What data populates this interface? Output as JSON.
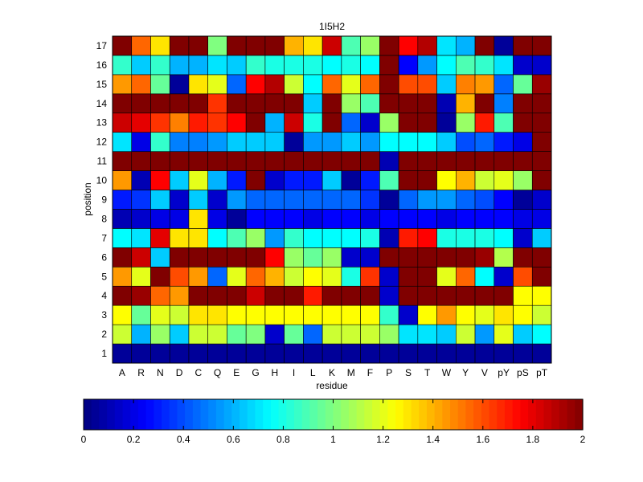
{
  "chart_data": {
    "type": "heatmap",
    "title": "1I5H2",
    "xlabel": "residue",
    "ylabel": "position",
    "x_categories": [
      "A",
      "R",
      "N",
      "D",
      "C",
      "Q",
      "E",
      "G",
      "H",
      "I",
      "L",
      "K",
      "M",
      "F",
      "P",
      "S",
      "T",
      "W",
      "Y",
      "V",
      "pY",
      "pS",
      "pT"
    ],
    "y_categories": [
      "1",
      "2",
      "3",
      "4",
      "5",
      "6",
      "7",
      "8",
      "9",
      "10",
      "11",
      "12",
      "13",
      "14",
      "15",
      "16",
      "17"
    ],
    "colormap": "jet",
    "clim": [
      0,
      2
    ],
    "colorbar": {
      "orientation": "horizontal",
      "ticks": [
        0,
        0.2,
        0.4,
        0.6,
        0.8,
        1,
        1.2,
        1.4,
        1.6,
        1.8,
        2
      ],
      "tick_labels": [
        "0",
        "0.2",
        "0.4",
        "0.6",
        "0.8",
        "1",
        "1.2",
        "1.4",
        "1.6",
        "1.8",
        "2"
      ]
    },
    "grid": true,
    "values": [
      [
        0.05,
        0.05,
        0.05,
        0.05,
        0.05,
        0.05,
        0.05,
        0.05,
        0.05,
        0.05,
        0.05,
        0.05,
        0.05,
        0.05,
        0.05,
        0.05,
        0.05,
        0.05,
        0.05,
        0.05,
        0.05,
        0.05,
        0.05
      ],
      [
        1.15,
        0.6,
        1.05,
        0.65,
        1.15,
        1.15,
        0.95,
        1.0,
        0.15,
        0.95,
        0.45,
        1.15,
        1.15,
        1.15,
        1.05,
        0.7,
        0.7,
        0.65,
        1.15,
        0.55,
        1.2,
        0.65,
        0.75
      ],
      [
        1.25,
        0.95,
        1.2,
        1.15,
        1.3,
        1.3,
        1.25,
        1.25,
        1.25,
        1.25,
        1.25,
        1.25,
        1.25,
        1.25,
        0.85,
        0.15,
        1.25,
        1.45,
        1.25,
        1.2,
        1.3,
        1.25,
        1.15
      ],
      [
        2.0,
        1.95,
        1.55,
        1.45,
        2.0,
        2.0,
        2.0,
        1.85,
        2.0,
        2.0,
        1.7,
        2.0,
        2.0,
        2.0,
        0.15,
        2.0,
        2.0,
        2.0,
        2.0,
        2.0,
        2.0,
        1.25,
        1.25
      ],
      [
        1.45,
        1.2,
        2.0,
        1.6,
        1.45,
        0.45,
        1.2,
        1.55,
        1.4,
        1.15,
        1.25,
        1.2,
        0.8,
        1.65,
        0.15,
        2.0,
        2.0,
        1.2,
        1.55,
        0.75,
        0.15,
        1.6,
        2.0
      ],
      [
        2.0,
        1.85,
        0.65,
        2.0,
        2.0,
        2.0,
        2.0,
        2.0,
        1.75,
        1.05,
        0.95,
        1.05,
        0.15,
        0.15,
        2.0,
        2.0,
        2.0,
        2.0,
        2.0,
        1.95,
        1.1,
        2.0,
        2.0
      ],
      [
        0.75,
        0.7,
        1.8,
        1.3,
        1.3,
        0.75,
        0.9,
        1.05,
        0.55,
        0.85,
        0.75,
        0.75,
        0.75,
        0.8,
        0.1,
        1.7,
        1.75,
        0.8,
        0.8,
        0.8,
        0.75,
        0.15,
        0.65
      ],
      [
        0.1,
        0.15,
        0.2,
        0.2,
        1.3,
        0.2,
        0.05,
        0.25,
        0.25,
        0.25,
        0.2,
        0.25,
        0.25,
        0.2,
        0.25,
        0.25,
        0.25,
        0.2,
        0.25,
        0.25,
        0.25,
        0.2,
        0.2
      ],
      [
        0.3,
        0.35,
        0.65,
        0.15,
        0.65,
        0.15,
        0.55,
        0.45,
        0.45,
        0.45,
        0.45,
        0.45,
        0.45,
        0.35,
        0.05,
        0.45,
        0.55,
        0.55,
        0.45,
        0.4,
        0.25,
        0.05,
        0.15
      ],
      [
        1.45,
        0.1,
        1.75,
        0.65,
        1.2,
        0.6,
        0.3,
        2.0,
        0.15,
        0.3,
        0.3,
        0.65,
        0.05,
        0.3,
        0.9,
        2.0,
        2.0,
        1.25,
        1.4,
        1.15,
        1.2,
        1.05,
        2.0
      ],
      [
        2.0,
        2.0,
        2.0,
        2.0,
        2.0,
        2.0,
        2.0,
        2.0,
        2.0,
        2.0,
        2.0,
        2.0,
        2.0,
        2.0,
        0.1,
        2.0,
        2.0,
        2.0,
        2.0,
        2.0,
        2.0,
        2.0,
        2.0
      ],
      [
        0.7,
        0.2,
        0.85,
        0.5,
        0.5,
        0.55,
        0.65,
        0.65,
        0.65,
        0.05,
        0.55,
        0.55,
        0.65,
        0.55,
        0.75,
        0.75,
        0.75,
        0.65,
        0.4,
        0.45,
        0.3,
        0.2,
        2.0
      ],
      [
        1.85,
        1.8,
        1.65,
        1.5,
        1.7,
        1.65,
        1.75,
        2.0,
        0.6,
        1.85,
        0.8,
        2.0,
        0.45,
        0.15,
        1.05,
        2.0,
        2.0,
        0.05,
        1.05,
        1.7,
        0.9,
        2.0,
        2.0
      ],
      [
        2.0,
        2.0,
        2.0,
        2.0,
        2.0,
        1.65,
        2.0,
        2.0,
        2.0,
        2.0,
        0.65,
        2.0,
        1.05,
        0.9,
        2.0,
        2.0,
        2.0,
        0.1,
        1.4,
        2.0,
        0.5,
        2.0,
        2.0
      ],
      [
        1.45,
        1.55,
        0.95,
        0.05,
        1.3,
        1.2,
        0.45,
        1.75,
        1.9,
        1.15,
        0.75,
        1.55,
        1.2,
        1.55,
        2.0,
        1.6,
        1.6,
        0.65,
        1.5,
        1.45,
        0.45,
        0.95,
        1.95
      ],
      [
        0.85,
        0.65,
        0.85,
        0.6,
        0.6,
        0.7,
        0.65,
        0.85,
        0.8,
        0.8,
        0.8,
        0.75,
        0.8,
        0.75,
        2.0,
        0.25,
        0.55,
        0.75,
        0.9,
        0.85,
        0.7,
        0.15,
        0.15
      ],
      [
        2.0,
        1.55,
        1.3,
        2.0,
        2.0,
        1.0,
        2.0,
        2.0,
        2.0,
        1.4,
        1.3,
        1.85,
        0.9,
        1.05,
        2.0,
        1.75,
        1.9,
        0.7,
        0.6,
        2.0,
        0.05,
        2.0,
        2.0
      ]
    ]
  }
}
